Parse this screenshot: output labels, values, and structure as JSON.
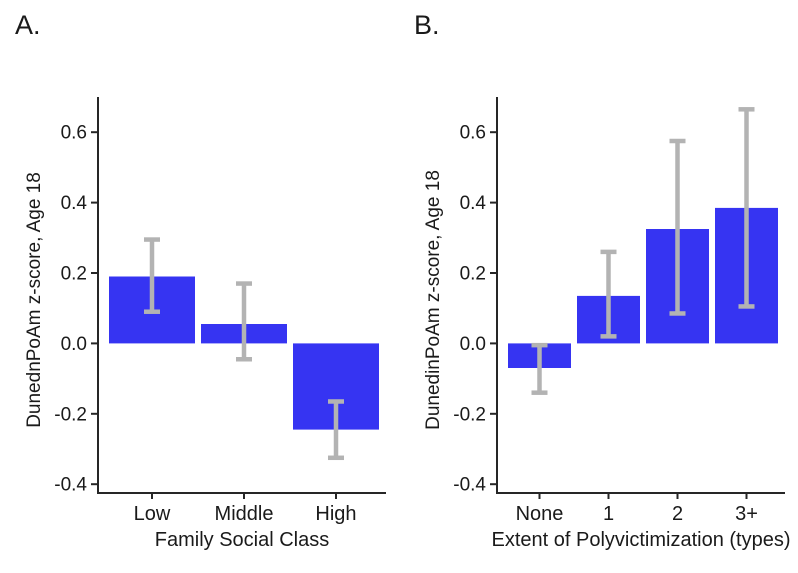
{
  "colors": {
    "bar": "#3634f2",
    "error_bar": "#b3b3b3",
    "axis": "#262626",
    "text": "#1a1a1a",
    "background": "#ffffff"
  },
  "chart_data": [
    {
      "type": "bar",
      "panel_label": "A.",
      "title": "",
      "ylabel": "DunednPoAm z-score, Age 18",
      "xlabel": "Family Social Class",
      "categories": [
        "Low",
        "Middle",
        "High"
      ],
      "values": [
        0.19,
        0.055,
        -0.245
      ],
      "error_low": [
        0.09,
        -0.045,
        -0.325
      ],
      "error_high": [
        0.295,
        0.17,
        -0.165
      ],
      "ylim": [
        -0.425,
        0.7
      ],
      "yticks": [
        0.6,
        0.4,
        0.2,
        0,
        -0.2,
        -0.4
      ],
      "ytick_labels": [
        "0.6",
        "0.4",
        "0.2",
        "0.0",
        "-0.2",
        "-0.4"
      ],
      "grid": false,
      "legend": "none"
    },
    {
      "type": "bar",
      "panel_label": "B.",
      "title": "",
      "ylabel": "DunedinPoAm z-score, Age 18",
      "xlabel": "Extent of Polyvictimization (types)",
      "categories": [
        "None",
        "1",
        "2",
        "3+"
      ],
      "values": [
        -0.07,
        0.135,
        0.325,
        0.385
      ],
      "error_low": [
        -0.14,
        0.02,
        0.085,
        0.105
      ],
      "error_high": [
        -0.005,
        0.26,
        0.575,
        0.665
      ],
      "ylim": [
        -0.425,
        0.7
      ],
      "yticks": [
        0.6,
        0.4,
        0.2,
        0,
        -0.2,
        -0.4
      ],
      "ytick_labels": [
        "0.6",
        "0.4",
        "0.2",
        "0.0",
        "-0.2",
        "-0.4"
      ],
      "grid": false,
      "legend": "none"
    }
  ]
}
